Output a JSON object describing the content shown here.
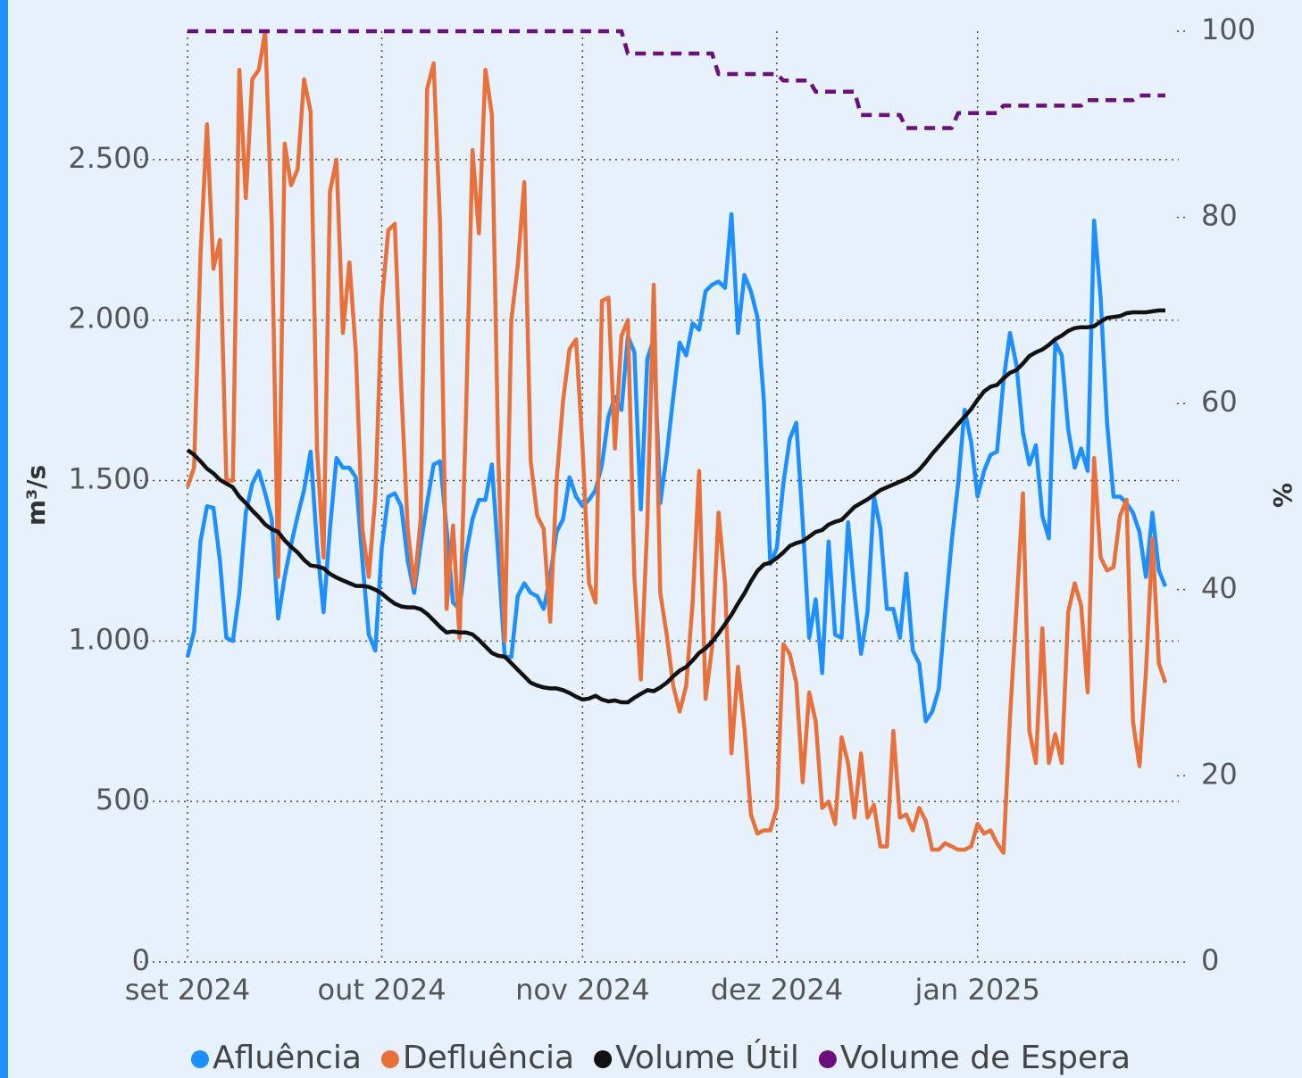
{
  "chart_data": {
    "type": "line",
    "y_label": "m³/s",
    "y2_label": "%",
    "categories": [
      "set 2024",
      null,
      null,
      null,
      null,
      null,
      null,
      null,
      null,
      null,
      null,
      null,
      null,
      null,
      null,
      null,
      null,
      null,
      null,
      null,
      null,
      null,
      null,
      null,
      null,
      null,
      null,
      null,
      null,
      null,
      "out 2024",
      null,
      null,
      null,
      null,
      null,
      null,
      null,
      null,
      null,
      null,
      null,
      null,
      null,
      null,
      null,
      null,
      null,
      null,
      null,
      null,
      null,
      null,
      null,
      null,
      null,
      null,
      null,
      null,
      null,
      null,
      "nov 2024",
      null,
      null,
      null,
      null,
      null,
      null,
      null,
      null,
      null,
      null,
      null,
      null,
      null,
      null,
      null,
      null,
      null,
      null,
      null,
      null,
      null,
      null,
      null,
      null,
      null,
      null,
      null,
      null,
      null,
      "dez 2024",
      null,
      null,
      null,
      null,
      null,
      null,
      null,
      null,
      null,
      null,
      null,
      null,
      null,
      null,
      null,
      null,
      null,
      null,
      null,
      null,
      null,
      null,
      null,
      null,
      null,
      null,
      null,
      null,
      null,
      null,
      "jan 2025",
      null,
      null,
      null,
      null,
      null,
      null,
      null,
      null,
      null,
      null,
      null,
      null,
      null,
      null,
      null,
      null,
      null,
      null,
      null,
      null,
      null,
      null,
      null,
      null,
      null,
      null,
      null,
      null,
      null
    ],
    "ylim": [
      0,
      2900
    ],
    "yticks": [
      0,
      500,
      {
        "value": 1000,
        "label": "1.000"
      },
      {
        "value": 1500,
        "label": "1.500"
      },
      {
        "value": 2000,
        "label": "2.000"
      },
      {
        "value": 2500,
        "label": "2.500"
      }
    ],
    "y2lim": [
      0,
      100
    ],
    "y2ticks": [
      0,
      20,
      40,
      60,
      80,
      100
    ],
    "grid": true,
    "legend": "bottom",
    "series": [
      {
        "name": "Afluência",
        "color": "#1e8fff",
        "values": [
          950,
          1030,
          1310,
          1420,
          1415,
          1250,
          1010,
          1000,
          1150,
          1400,
          1490,
          1530,
          1460,
          1380,
          1070,
          1200,
          1300,
          1390,
          1470,
          1590,
          1300,
          1090,
          1350,
          1570,
          1540,
          1540,
          1510,
          1250,
          1020,
          970,
          1290,
          1450,
          1460,
          1420,
          1250,
          1150,
          1300,
          1430,
          1550,
          1560,
          1350,
          1120,
          1100,
          1270,
          1380,
          1440,
          1440,
          1550,
          1260,
          950,
          950,
          1140,
          1180,
          1150,
          1140,
          1100,
          1200,
          1340,
          1380,
          1510,
          1450,
          1420,
          1440,
          1470,
          1550,
          1700,
          1760,
          1720,
          1950,
          1900,
          1410,
          1880,
          1940,
          1430,
          1580,
          1760,
          1930,
          1890,
          1990,
          1970,
          2090,
          2110,
          2120,
          2100,
          2330,
          1960,
          2140,
          2090,
          2010,
          1750,
          1240,
          1290,
          1490,
          1630,
          1680,
          1370,
          1010,
          1130,
          900,
          1310,
          1020,
          1010,
          1370,
          1150,
          960,
          1090,
          1450,
          1350,
          1100,
          1100,
          1010,
          1210,
          970,
          930,
          750,
          780,
          850,
          1090,
          1310,
          1490,
          1720,
          1620,
          1450,
          1530,
          1580,
          1590,
          1810,
          1960,
          1860,
          1650,
          1550,
          1610,
          1390,
          1320,
          1930,
          1890,
          1660,
          1540,
          1600,
          1530,
          2310,
          2070,
          1680,
          1450,
          1450,
          1430,
          1400,
          1340,
          1200,
          1400,
          1220,
          1170
        ]
      },
      {
        "name": "Defluência",
        "color": "#e8703a",
        "values": [
          1480,
          1540,
          2200,
          2610,
          2160,
          2250,
          1500,
          1500,
          2780,
          2380,
          2750,
          2780,
          2900,
          2300,
          1200,
          2550,
          2420,
          2470,
          2750,
          2650,
          1600,
          1260,
          2400,
          2500,
          1960,
          2180,
          1900,
          1350,
          1200,
          1450,
          2050,
          2280,
          2300,
          1790,
          1350,
          1170,
          1380,
          2720,
          2800,
          2300,
          1100,
          1360,
          1010,
          1700,
          2530,
          2270,
          2780,
          2640,
          1560,
          1000,
          2000,
          2170,
          2430,
          1560,
          1390,
          1350,
          1060,
          1500,
          1750,
          1910,
          1940,
          1600,
          1180,
          1120,
          2060,
          2070,
          1600,
          1950,
          2000,
          1200,
          880,
          1370,
          2110,
          1150,
          1020,
          860,
          780,
          860,
          1120,
          1530,
          820,
          980,
          1400,
          1180,
          650,
          920,
          730,
          460,
          400,
          410,
          410,
          480,
          990,
          960,
          870,
          560,
          840,
          750,
          480,
          500,
          430,
          700,
          620,
          450,
          650,
          450,
          490,
          360,
          360,
          720,
          450,
          460,
          410,
          480,
          440,
          350,
          350,
          370,
          360,
          350,
          350,
          360,
          430,
          400,
          410,
          370,
          340,
          760,
          1100,
          1460,
          720,
          620,
          1040,
          620,
          710,
          620,
          1090,
          1180,
          1110,
          840,
          1570,
          1260,
          1220,
          1230,
          1390,
          1440,
          750,
          610,
          900,
          1320,
          930,
          870
        ]
      },
      {
        "name": "Volume Útil",
        "color": "#111111",
        "axis": "y2",
        "values": [
          55.0,
          54.5,
          53.8,
          53.0,
          52.5,
          51.8,
          51.4,
          51.0,
          50.0,
          49.3,
          48.5,
          47.8,
          47.0,
          46.5,
          46.2,
          45.3,
          44.6,
          44.0,
          43.2,
          42.6,
          42.5,
          42.3,
          41.7,
          41.3,
          41.0,
          40.7,
          40.4,
          40.4,
          40.3,
          40.0,
          39.6,
          39.0,
          38.5,
          38.2,
          38.1,
          38.1,
          37.9,
          37.4,
          36.7,
          36.0,
          35.4,
          35.5,
          35.4,
          35.4,
          35.2,
          34.6,
          33.9,
          33.2,
          32.9,
          32.8,
          32.1,
          31.4,
          30.7,
          30.0,
          29.7,
          29.5,
          29.4,
          29.4,
          29.2,
          28.9,
          28.5,
          28.2,
          28.3,
          28.6,
          28.2,
          28.0,
          28.1,
          27.9,
          27.9,
          28.4,
          28.8,
          29.2,
          29.1,
          29.5,
          30.0,
          30.7,
          31.3,
          31.7,
          32.4,
          33.2,
          33.7,
          34.4,
          35.3,
          36.3,
          37.3,
          38.5,
          39.6,
          40.9,
          42.0,
          42.7,
          42.9,
          43.4,
          44.0,
          44.7,
          45.0,
          45.2,
          45.7,
          46.2,
          46.4,
          47.0,
          47.3,
          47.5,
          48.2,
          48.9,
          49.3,
          49.7,
          50.2,
          50.7,
          51.0,
          51.3,
          51.6,
          51.9,
          52.3,
          52.9,
          53.7,
          54.6,
          55.4,
          56.2,
          57.0,
          57.8,
          58.6,
          59.4,
          60.4,
          61.3,
          61.8,
          62.0,
          62.7,
          63.3,
          63.6,
          64.3,
          65.1,
          65.5,
          65.8,
          66.3,
          66.9,
          67.3,
          67.8,
          68.1,
          68.2,
          68.2,
          68.3,
          68.8,
          69.2,
          69.3,
          69.4,
          69.7,
          69.8,
          69.8,
          69.8,
          69.9,
          70.0,
          70.0
        ]
      },
      {
        "name": "Volume de Espera",
        "color": "#6b0f7d",
        "axis": "y2",
        "line_style": "dashed",
        "values": [
          100,
          100,
          100,
          100,
          100,
          100,
          100,
          100,
          100,
          100,
          100,
          100,
          100,
          100,
          100,
          100,
          100,
          100,
          100,
          100,
          100,
          100,
          100,
          100,
          100,
          100,
          100,
          100,
          100,
          100,
          100,
          100,
          100,
          100,
          100,
          100,
          100,
          100,
          100,
          100,
          100,
          100,
          100,
          100,
          100,
          100,
          100,
          100,
          100,
          100,
          100,
          100,
          100,
          100,
          100,
          100,
          100,
          100,
          100,
          100,
          100,
          100,
          100,
          100,
          100,
          100,
          100,
          100,
          97.6,
          97.6,
          97.6,
          97.6,
          97.6,
          97.6,
          97.6,
          97.6,
          97.6,
          97.6,
          97.6,
          97.6,
          97.6,
          97.6,
          95.4,
          95.4,
          95.4,
          95.4,
          95.4,
          95.4,
          95.4,
          95.4,
          95.4,
          95.4,
          94.7,
          94.7,
          94.7,
          94.7,
          94.7,
          93.5,
          93.5,
          93.5,
          93.5,
          93.5,
          93.5,
          93.5,
          91.0,
          91.0,
          91.0,
          91.0,
          91.0,
          91.0,
          91.0,
          89.6,
          89.6,
          89.6,
          89.6,
          89.6,
          89.6,
          89.6,
          89.6,
          91.2,
          91.2,
          91.2,
          91.2,
          91.2,
          91.2,
          91.2,
          92.0,
          92.0,
          92.0,
          92.0,
          92.0,
          92.0,
          92.0,
          92.0,
          92.0,
          92.0,
          92.0,
          92.0,
          92.0,
          92.6,
          92.6,
          92.6,
          92.6,
          92.6,
          92.6,
          92.6,
          92.6,
          93.1,
          93.1,
          93.1,
          93.1,
          93.1
        ]
      }
    ]
  }
}
